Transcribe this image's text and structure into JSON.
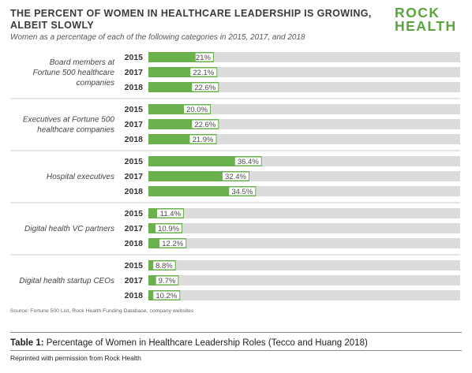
{
  "header": {
    "title": "THE PERCENT OF WOMEN IN HEALTHCARE LEADERSHIP IS GROWING, ALBEIT SLOWLY",
    "subtitle": "Women as a percentage of each of the following categories in 2015, 2017, and 2018",
    "logo_line1": "ROCK",
    "logo_line2": "HEALTH",
    "logo_color": "#5aa53c"
  },
  "chart_data": {
    "type": "bar",
    "orientation": "horizontal",
    "xlim": [
      0,
      100
    ],
    "colors": {
      "bar": "#6ab04c",
      "track": "#dcdcdc",
      "label_bg": "#ffffff"
    },
    "groups": [
      {
        "category": "Board members at Fortune 500 healthcare companies",
        "label_lines": [
          "Board members at",
          "Fortune 500 healthcare",
          "companies"
        ],
        "years": [
          "2015",
          "2017",
          "2018"
        ],
        "values": [
          21,
          22.1,
          22.6
        ],
        "value_labels": [
          "21%",
          "22.1%",
          "22.6%"
        ]
      },
      {
        "category": "Executives at Fortune 500 healthcare companies",
        "label_lines": [
          "Executives at Fortune 500",
          "healthcare companies"
        ],
        "years": [
          "2015",
          "2017",
          "2018"
        ],
        "values": [
          20.0,
          22.6,
          21.9
        ],
        "value_labels": [
          "20.0%",
          "22.6%",
          "21.9%"
        ]
      },
      {
        "category": "Hospital executives",
        "label_lines": [
          "Hospital executives"
        ],
        "years": [
          "2015",
          "2017",
          "2018"
        ],
        "values": [
          36.4,
          32.4,
          34.5
        ],
        "value_labels": [
          "36.4%",
          "32.4%",
          "34.5%"
        ]
      },
      {
        "category": "Digital health VC partners",
        "label_lines": [
          "Digital health VC partners"
        ],
        "years": [
          "2015",
          "2017",
          "2018"
        ],
        "values": [
          11.4,
          10.9,
          12.2
        ],
        "value_labels": [
          "11.4%",
          "10.9%",
          "12.2%"
        ]
      },
      {
        "category": "Digital health startup CEOs",
        "label_lines": [
          "Digital health startup CEOs"
        ],
        "years": [
          "2015",
          "2017",
          "2018"
        ],
        "values": [
          8.8,
          9.7,
          10.2
        ],
        "value_labels": [
          "8.8%",
          "9.7%",
          "10.2%"
        ]
      }
    ]
  },
  "footer": {
    "source": "Source: Fortune 500 List, Rock Health Funding Database, company websites",
    "caption_bold": "Table 1:",
    "caption_text": " Percentage of Women in Healthcare Leadership Roles (Tecco and Huang 2018)",
    "permission": "Reprinted with permission from Rock Health"
  }
}
